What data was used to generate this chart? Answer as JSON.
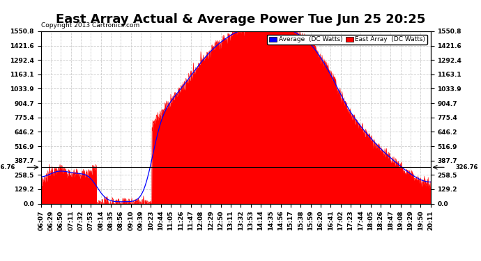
{
  "title": "East Array Actual & Average Power Tue Jun 25 20:25",
  "copyright": "Copyright 2013 Cartronics.com",
  "legend_items": [
    "Average  (DC Watts)",
    "East Array  (DC Watts)"
  ],
  "legend_colors": [
    "#0000ff",
    "#ff0000"
  ],
  "yticks": [
    0.0,
    129.2,
    258.5,
    387.7,
    516.9,
    646.2,
    775.4,
    904.7,
    1033.9,
    1163.1,
    1292.4,
    1421.6,
    1550.8
  ],
  "ymax": 1550.8,
  "ymin": 0.0,
  "hline_y": 326.76,
  "hline_label": "326.76",
  "background_color": "#ffffff",
  "plot_bg_color": "#ffffff",
  "grid_color": "#cccccc",
  "fill_color": "#ff0000",
  "line_color": "#ff0000",
  "avg_line_color": "#0000ff",
  "xtick_labels": [
    "06:07",
    "06:29",
    "06:50",
    "07:11",
    "07:32",
    "07:53",
    "08:14",
    "08:35",
    "08:56",
    "09:10",
    "09:39",
    "10:23",
    "10:44",
    "11:05",
    "11:26",
    "11:47",
    "12:08",
    "12:29",
    "12:50",
    "13:11",
    "13:32",
    "13:53",
    "14:14",
    "14:35",
    "14:56",
    "15:17",
    "15:38",
    "15:59",
    "16:20",
    "16:41",
    "17:02",
    "17:23",
    "17:44",
    "18:05",
    "18:26",
    "18:47",
    "19:08",
    "19:29",
    "19:50",
    "20:11"
  ],
  "title_fontsize": 13,
  "tick_fontsize": 6.5,
  "copyright_fontsize": 6.5
}
